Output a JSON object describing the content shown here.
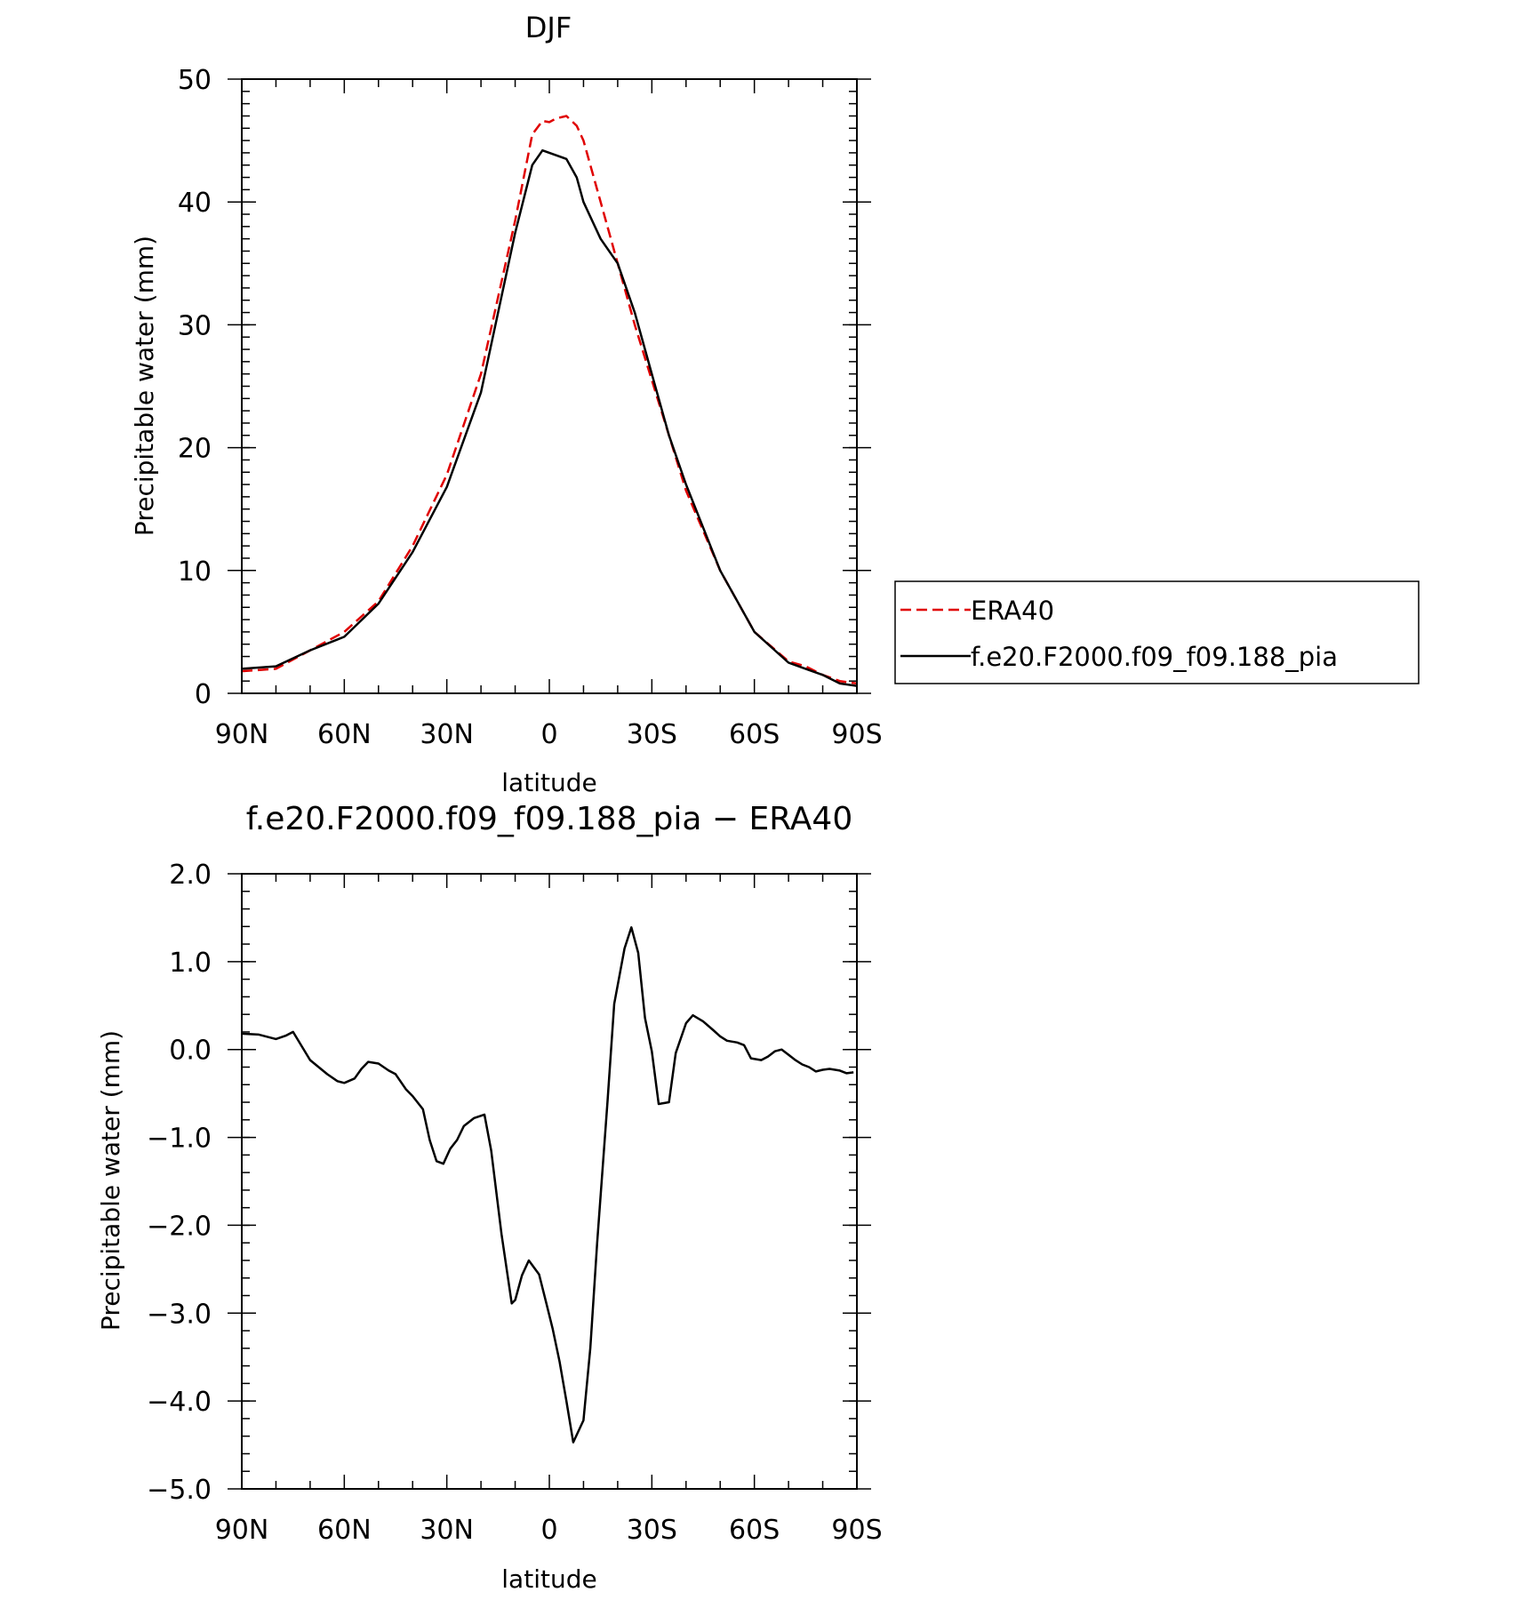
{
  "chart_data": [
    {
      "type": "line",
      "title": "DJF",
      "xlabel": "latitude",
      "ylabel": "Precipitable water (mm)",
      "xlim": [
        90,
        -90
      ],
      "ylim": [
        0,
        50
      ],
      "x_ticks": [
        {
          "value": 90,
          "label": "90N"
        },
        {
          "value": 60,
          "label": "60N"
        },
        {
          "value": 30,
          "label": "30N"
        },
        {
          "value": 0,
          "label": "0"
        },
        {
          "value": -30,
          "label": "30S"
        },
        {
          "value": -60,
          "label": "60S"
        },
        {
          "value": -90,
          "label": "90S"
        }
      ],
      "y_ticks": [
        {
          "value": 0,
          "label": "0"
        },
        {
          "value": 10,
          "label": "10"
        },
        {
          "value": 20,
          "label": "20"
        },
        {
          "value": 30,
          "label": "30"
        },
        {
          "value": 40,
          "label": "40"
        },
        {
          "value": 50,
          "label": "50"
        }
      ],
      "legend": {
        "placement": "right"
      },
      "series": [
        {
          "name": "ERA40",
          "color": "#e00000",
          "dash": "dashed",
          "x": [
            90,
            80,
            70,
            60,
            50,
            40,
            30,
            20,
            10,
            5,
            2,
            0,
            -2,
            -5,
            -8,
            -10,
            -15,
            -20,
            -25,
            -30,
            -35,
            -40,
            -50,
            -60,
            -70,
            -75,
            -80,
            -85,
            -90
          ],
          "y": [
            1.8,
            2.0,
            3.5,
            5.0,
            7.5,
            12.0,
            17.8,
            26.0,
            38.5,
            45.5,
            46.6,
            46.5,
            46.8,
            47.0,
            46.2,
            45.0,
            40.0,
            35.0,
            30.0,
            25.5,
            21.0,
            16.5,
            10.0,
            5.0,
            2.6,
            2.2,
            1.5,
            1.0,
            0.8
          ]
        },
        {
          "name": "f.e20.F2000.f09_f09.188_pia",
          "color": "#000000",
          "dash": "solid",
          "x": [
            90,
            80,
            70,
            60,
            50,
            40,
            30,
            20,
            10,
            5,
            2,
            0,
            -2,
            -5,
            -8,
            -10,
            -15,
            -20,
            -25,
            -30,
            -35,
            -40,
            -50,
            -60,
            -70,
            -75,
            -80,
            -85,
            -90
          ],
          "y": [
            2.0,
            2.2,
            3.5,
            4.6,
            7.3,
            11.5,
            16.8,
            24.5,
            37.5,
            43.0,
            44.2,
            44.0,
            43.8,
            43.5,
            42.0,
            40.0,
            37.0,
            35.0,
            31.0,
            26.0,
            21.0,
            17.0,
            10.0,
            5.0,
            2.5,
            2.0,
            1.5,
            0.8,
            0.6
          ]
        }
      ]
    },
    {
      "type": "line",
      "title": "f.e20.F2000.f09_f09.188_pia − ERA40",
      "xlabel": "latitude",
      "ylabel": "Precipitable water (mm)",
      "xlim": [
        90,
        -90
      ],
      "ylim": [
        -5,
        2
      ],
      "x_ticks": [
        {
          "value": 90,
          "label": "90N"
        },
        {
          "value": 60,
          "label": "60N"
        },
        {
          "value": 30,
          "label": "30N"
        },
        {
          "value": 0,
          "label": "0"
        },
        {
          "value": -30,
          "label": "30S"
        },
        {
          "value": -60,
          "label": "60S"
        },
        {
          "value": -90,
          "label": "90S"
        }
      ],
      "y_ticks": [
        {
          "value": 2,
          "label": "2.0"
        },
        {
          "value": 1,
          "label": "1.0"
        },
        {
          "value": 0,
          "label": "0.0"
        },
        {
          "value": -1,
          "label": "−1.0"
        },
        {
          "value": -2,
          "label": "−2.0"
        },
        {
          "value": -3,
          "label": "−3.0"
        },
        {
          "value": -4,
          "label": "−4.0"
        },
        {
          "value": -5,
          "label": "−5.0"
        }
      ],
      "series": [
        {
          "color": "#000000",
          "dash": "solid",
          "x": [
            90,
            85,
            80,
            77,
            75,
            70,
            65,
            62,
            60,
            57,
            55,
            53,
            50,
            47,
            45,
            42,
            40,
            37,
            35,
            33,
            31,
            29,
            27,
            25,
            22,
            19,
            17,
            14,
            11,
            10,
            8,
            6,
            3,
            1,
            -1,
            -3,
            -5,
            -7,
            -10,
            -12,
            -14,
            -17,
            -19,
            -22,
            -24,
            -26,
            -28,
            -30,
            -32,
            -35,
            -37,
            -40,
            -42,
            -45,
            -48,
            -50,
            -52,
            -55,
            -57,
            -59,
            -62,
            -64,
            -66,
            -68,
            -70,
            -72,
            -74,
            -76,
            -78,
            -80,
            -82,
            -85,
            -87,
            -89
          ],
          "y": [
            0.18,
            0.17,
            0.12,
            0.16,
            0.2,
            -0.12,
            -0.28,
            -0.36,
            -0.38,
            -0.33,
            -0.22,
            -0.14,
            -0.16,
            -0.24,
            -0.28,
            -0.45,
            -0.53,
            -0.68,
            -1.03,
            -1.27,
            -1.3,
            -1.13,
            -1.03,
            -0.87,
            -0.78,
            -0.74,
            -1.15,
            -2.1,
            -2.89,
            -2.85,
            -2.57,
            -2.4,
            -2.56,
            -2.87,
            -3.18,
            -3.55,
            -4.0,
            -4.47,
            -4.22,
            -3.4,
            -2.2,
            -0.6,
            0.52,
            1.15,
            1.39,
            1.1,
            0.36,
            -0.02,
            -0.62,
            -0.6,
            -0.04,
            0.3,
            0.39,
            0.32,
            0.22,
            0.15,
            0.1,
            0.08,
            0.05,
            -0.1,
            -0.12,
            -0.08,
            -0.02,
            0.0,
            -0.06,
            -0.12,
            -0.17,
            -0.2,
            -0.25,
            -0.23,
            -0.22,
            -0.24,
            -0.27,
            -0.26
          ]
        }
      ]
    }
  ],
  "legend": {
    "items": [
      {
        "label": "ERA40"
      },
      {
        "label": "f.e20.F2000.f09_f09.188_pia"
      }
    ]
  }
}
